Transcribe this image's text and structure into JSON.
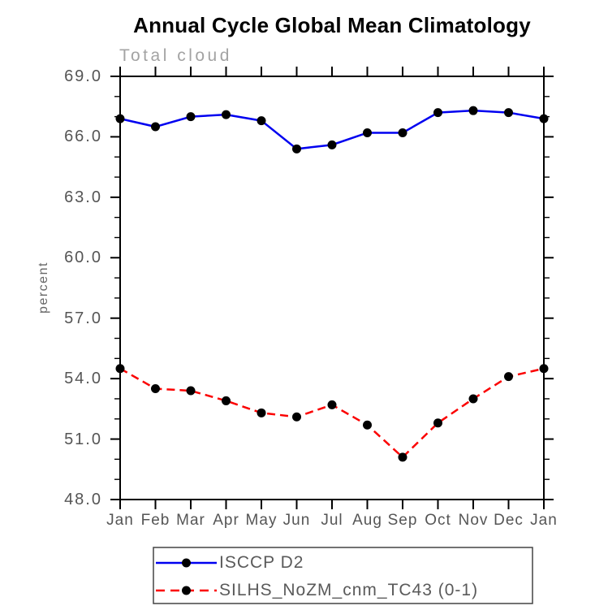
{
  "page": {
    "background_color": "#ffffff"
  },
  "chart_data": {
    "type": "line",
    "title": "Annual Cycle Global Mean Climatology",
    "subtitle": "Total cloud",
    "ylabel": "percent",
    "xlabel": "",
    "categories": [
      "Jan",
      "Feb",
      "Mar",
      "Apr",
      "May",
      "Jun",
      "Jul",
      "Aug",
      "Sep",
      "Oct",
      "Nov",
      "Dec",
      "Jan"
    ],
    "series": [
      {
        "name": "ISCCP D2",
        "color": "#0000f0",
        "line_style": "solid",
        "marker": "filled-circle",
        "marker_color": "#000000",
        "values": [
          66.9,
          66.5,
          67.0,
          67.1,
          66.8,
          65.4,
          65.6,
          66.2,
          66.2,
          67.2,
          67.3,
          67.2,
          66.9
        ]
      },
      {
        "name": "SILHS_NoZM_cnm_TC43 (0-1)",
        "color": "#fb0000",
        "line_style": "dashed",
        "marker": "filled-circle",
        "marker_color": "#000000",
        "values": [
          54.5,
          53.5,
          53.4,
          52.9,
          52.3,
          52.1,
          52.7,
          51.7,
          50.1,
          51.8,
          53.0,
          54.1,
          54.5
        ]
      }
    ],
    "ylim": [
      48.0,
      69.0
    ],
    "ytick_interval": 3.0,
    "yminor_interval": 1.0,
    "ytick_labels": [
      "48.0",
      "51.0",
      "54.0",
      "57.0",
      "60.0",
      "63.0",
      "66.0",
      "69.0"
    ],
    "grid": false,
    "axis_color": "#000000",
    "tick_label_color": "#555555",
    "legend_position": "bottom",
    "legend_border_color": "#444444"
  }
}
